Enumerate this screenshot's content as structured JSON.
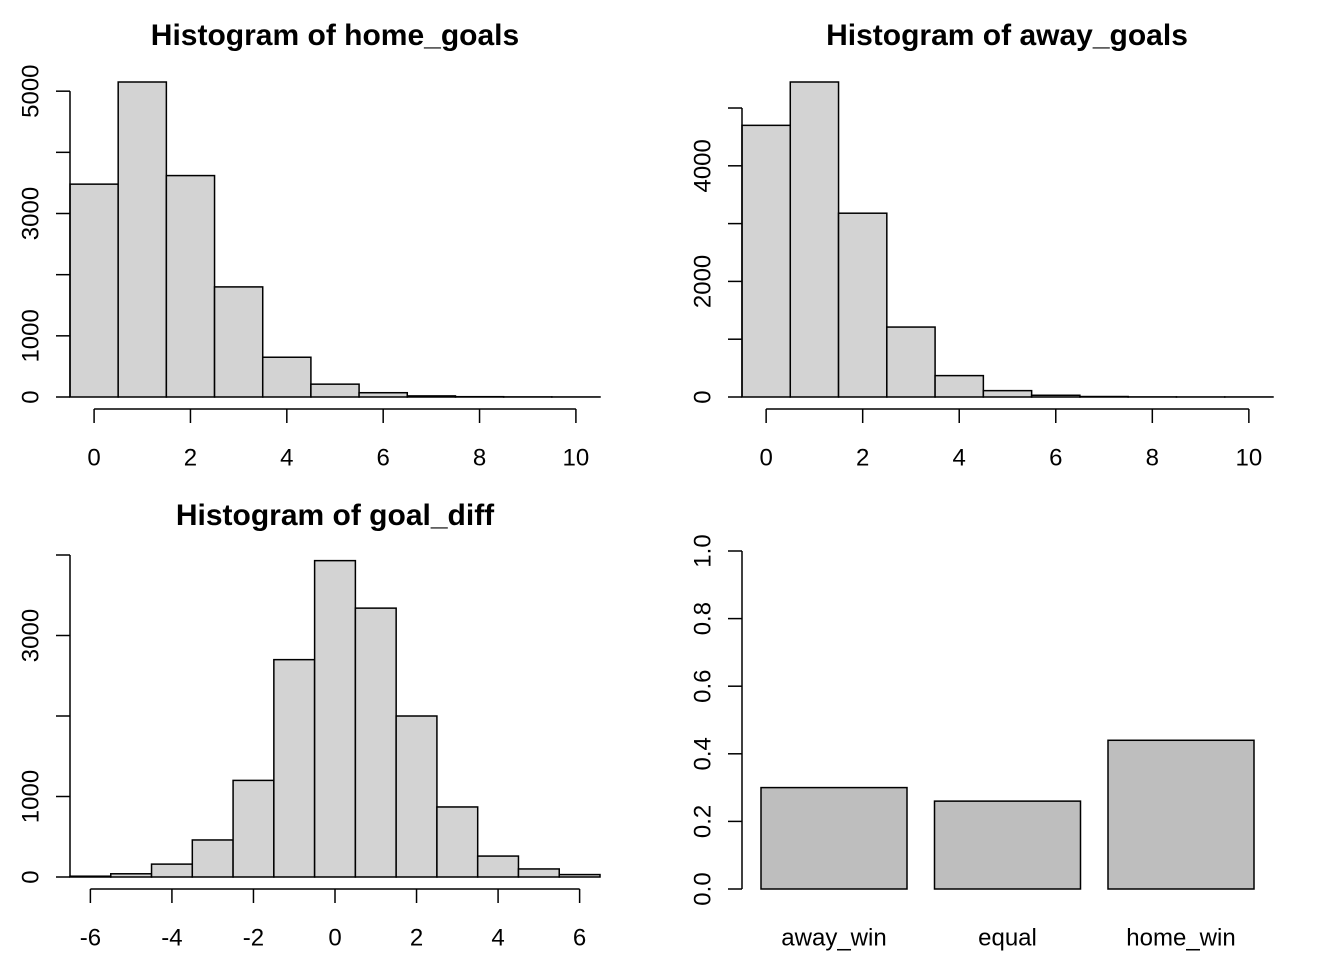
{
  "chart_data": [
    {
      "type": "bar",
      "subtype": "histogram",
      "title": "Histogram of home_goals",
      "xlabel": "",
      "ylabel": "",
      "bin_edges": [
        -0.5,
        0.5,
        1.5,
        2.5,
        3.5,
        4.5,
        5.5,
        6.5,
        7.5,
        8.5,
        9.5,
        10.5
      ],
      "values": [
        3480,
        5150,
        3620,
        1800,
        650,
        210,
        70,
        18,
        5,
        2,
        1
      ],
      "xlim": [
        -0.5,
        10.5
      ],
      "ylim": [
        0,
        5150
      ],
      "x_ticks": [
        0,
        2,
        4,
        6,
        8,
        10
      ],
      "y_ticks": [
        0,
        1000,
        3000,
        5000
      ],
      "y_minor_ticks": [
        0,
        1000,
        2000,
        3000,
        4000,
        5000
      ],
      "bar_color": "#d3d3d3",
      "grid": false
    },
    {
      "type": "bar",
      "subtype": "histogram",
      "title": "Histogram of away_goals",
      "xlabel": "",
      "ylabel": "",
      "bin_edges": [
        -0.5,
        0.5,
        1.5,
        2.5,
        3.5,
        4.5,
        5.5,
        6.5,
        7.5,
        8.5,
        9.5,
        10.5
      ],
      "values": [
        4700,
        5450,
        3180,
        1210,
        370,
        110,
        30,
        8,
        2,
        1,
        1
      ],
      "xlim": [
        -0.5,
        10.5
      ],
      "ylim": [
        0,
        5450
      ],
      "x_ticks": [
        0,
        2,
        4,
        6,
        8,
        10
      ],
      "y_ticks": [
        0,
        2000,
        4000
      ],
      "y_minor_ticks": [
        0,
        1000,
        2000,
        3000,
        4000,
        5000
      ],
      "bar_color": "#d3d3d3",
      "grid": false
    },
    {
      "type": "bar",
      "subtype": "histogram",
      "title": "Histogram of goal_diff",
      "xlabel": "",
      "ylabel": "",
      "bin_edges": [
        -6.5,
        -5.5,
        -4.5,
        -3.5,
        -2.5,
        -1.5,
        -0.5,
        0.5,
        1.5,
        2.5,
        3.5,
        4.5,
        5.5,
        6.5
      ],
      "values": [
        10,
        40,
        160,
        460,
        1200,
        2700,
        3930,
        3340,
        2000,
        870,
        260,
        100,
        30
      ],
      "xlim": [
        -6.5,
        6.5
      ],
      "ylim": [
        0,
        4000
      ],
      "x_ticks": [
        -6,
        -4,
        -2,
        0,
        2,
        4,
        6
      ],
      "y_ticks": [
        0,
        1000,
        3000
      ],
      "y_minor_ticks": [
        0,
        1000,
        2000,
        3000,
        4000
      ],
      "bar_color": "#d3d3d3",
      "grid": false
    },
    {
      "type": "bar",
      "title": "",
      "xlabel": "",
      "ylabel": "",
      "categories": [
        "away_win",
        "equal",
        "home_win"
      ],
      "values": [
        0.3,
        0.26,
        0.44
      ],
      "ylim": [
        0,
        1
      ],
      "y_ticks": [
        0.0,
        0.2,
        0.4,
        0.6,
        0.8,
        1.0
      ],
      "y_tick_labels": [
        "0.0",
        "0.2",
        "0.4",
        "0.6",
        "0.8",
        "1.0"
      ],
      "bar_color": "#bebebe",
      "grid": false
    }
  ]
}
